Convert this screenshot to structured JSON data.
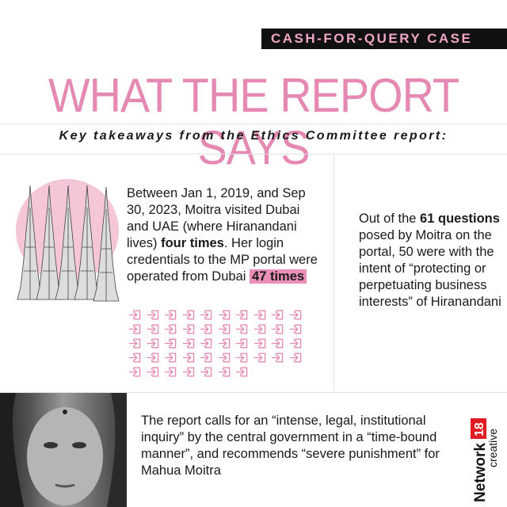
{
  "banner": "CASH-FOR-QUERY CASE",
  "title": "WHAT THE REPORT SAYS",
  "subtitle": "Key takeaways from the Ethics Committee report:",
  "left": {
    "text1": "Between Jan 1, 2019, and Sep 30, 2023, Moitra visited Dubai and UAE (where Hiranandani lives) ",
    "bold": "four times",
    "text2": ". Her login credentials to the MP portal were operated from Dubai ",
    "highlight": "47 times",
    "login_icon_count": 47
  },
  "right": {
    "text1": "Out of the ",
    "bold": "61 questions",
    "text2": " posed by Moitra on the portal, 50 were with the intent of “protecting or perpetuating business interests” of Hiranandani"
  },
  "bottom": {
    "text": "The report calls for an “intense, legal, institutional inquiry” by the central government in a “time-bound manner”, and recommends “severe punishment” for Mahua Moitra"
  },
  "logo": {
    "brand": "Network",
    "number": "18",
    "sub": "creative"
  },
  "colors": {
    "pink": "#e589b3",
    "banner_bg": "#111111",
    "circle": "#f4c6d8",
    "logo_red": "#e11b22"
  }
}
